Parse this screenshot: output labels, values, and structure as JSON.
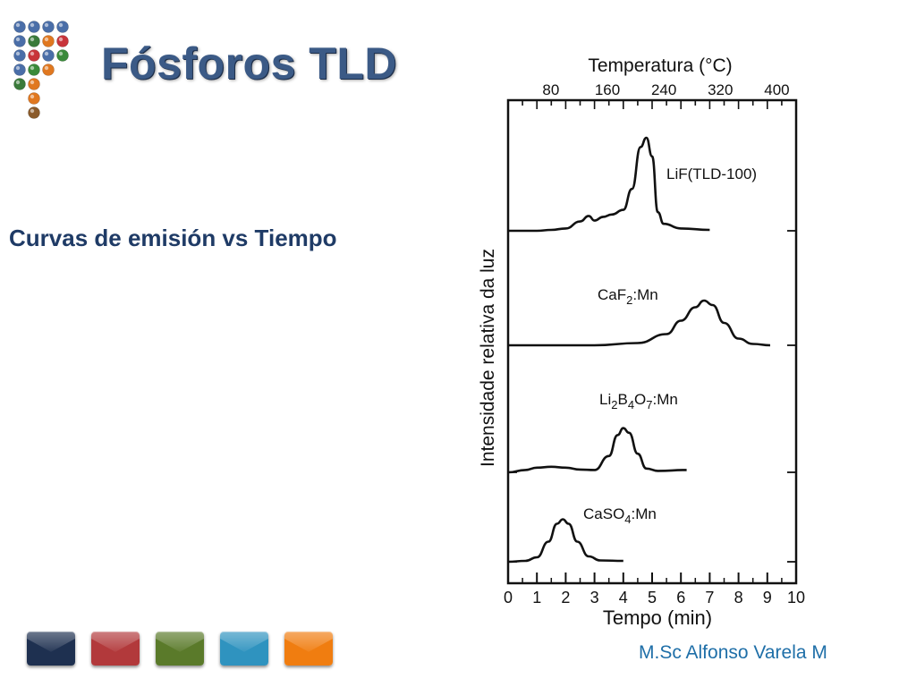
{
  "slide": {
    "title": "Fósforos TLD",
    "subtitle": "Curvas de emisión vs Tiempo",
    "author": "M.Sc Alfonso Varela M"
  },
  "colors": {
    "title": "#3b5a86",
    "subtitle": "#1f3b66",
    "author": "#1f6fa8",
    "nav_buttons": [
      "#1e3050",
      "#b2393b",
      "#5a7a2a",
      "#2f93bf",
      "#f07d10"
    ]
  },
  "logo": {
    "dot_colors": [
      [
        "#4a6ea8",
        "#4a6ea8",
        "#4a6ea8",
        "#4a6ea8"
      ],
      [
        "#4a6ea8",
        "#3a7a3a",
        "#e07820",
        "#c8343a"
      ],
      [
        "#4a6ea8",
        "#c8343a",
        "#4a6ea8",
        "#3a8a3a"
      ],
      [
        "#4a6ea8",
        "#3a8a3a",
        "#e07820"
      ],
      [
        "#3a7a3a",
        "#e07820"
      ],
      [
        "#e07820"
      ],
      [
        "#8a5a2a"
      ]
    ]
  },
  "chart_data": {
    "type": "line",
    "top_axis_title": "Temperatura (°C)",
    "top_ticks": [
      "80",
      "160",
      "240",
      "320",
      "400"
    ],
    "xlabel": "Tempo (min)",
    "ylabel": "Intensidade relativa da luz",
    "xlim": [
      0,
      10
    ],
    "x_ticks": [
      "0",
      "1",
      "2",
      "3",
      "4",
      "5",
      "6",
      "7",
      "8",
      "9",
      "10"
    ],
    "series": [
      {
        "name": "LiF(TLD-100)",
        "label_main": "LiF(TLD-100)",
        "x": [
          0,
          1,
          1.5,
          2,
          2.5,
          2.8,
          3.0,
          3.3,
          3.6,
          4.0,
          4.3,
          4.6,
          4.8,
          5.0,
          5.2,
          5.4,
          6,
          7
        ],
        "y": [
          0.0,
          0.0,
          0.02,
          0.05,
          0.2,
          0.32,
          0.22,
          0.3,
          0.35,
          0.45,
          0.9,
          1.8,
          2.0,
          1.6,
          0.4,
          0.15,
          0.05,
          0.02
        ]
      },
      {
        "name": "CaF2:Mn",
        "label_main": "CaF",
        "label_sub": "2",
        "label_rest": ":Mn",
        "x": [
          0,
          3,
          4.5,
          5.5,
          6.0,
          6.5,
          6.8,
          7.1,
          7.5,
          8.0,
          8.5,
          9.1
        ],
        "y": [
          0.0,
          0.0,
          0.05,
          0.25,
          0.55,
          0.85,
          1.0,
          0.9,
          0.5,
          0.15,
          0.03,
          0.0
        ]
      },
      {
        "name": "Li2B4O7:Mn",
        "label_main": "Li",
        "label_sub": "2",
        "label_rest": "B",
        "label_sub2": "4",
        "label_rest2": "O",
        "label_sub3": "7",
        "label_rest3": ":Mn",
        "x": [
          0,
          0.6,
          1.0,
          1.5,
          2.0,
          2.5,
          3.0,
          3.5,
          3.8,
          4.0,
          4.2,
          4.5,
          4.8,
          5.2,
          6.2
        ],
        "y": [
          0.0,
          0.05,
          0.1,
          0.12,
          0.1,
          0.06,
          0.05,
          0.35,
          0.8,
          0.95,
          0.85,
          0.4,
          0.08,
          0.03,
          0.05
        ]
      },
      {
        "name": "CaSO4:Mn",
        "label_main": "CaSO",
        "label_sub": "4",
        "label_rest": ":Mn",
        "x": [
          0,
          0.6,
          1.0,
          1.4,
          1.7,
          1.9,
          2.1,
          2.4,
          2.8,
          3.2,
          4.0
        ],
        "y": [
          0.0,
          0.02,
          0.1,
          0.45,
          0.85,
          0.95,
          0.85,
          0.45,
          0.12,
          0.03,
          0.02
        ]
      }
    ],
    "grid": false
  }
}
